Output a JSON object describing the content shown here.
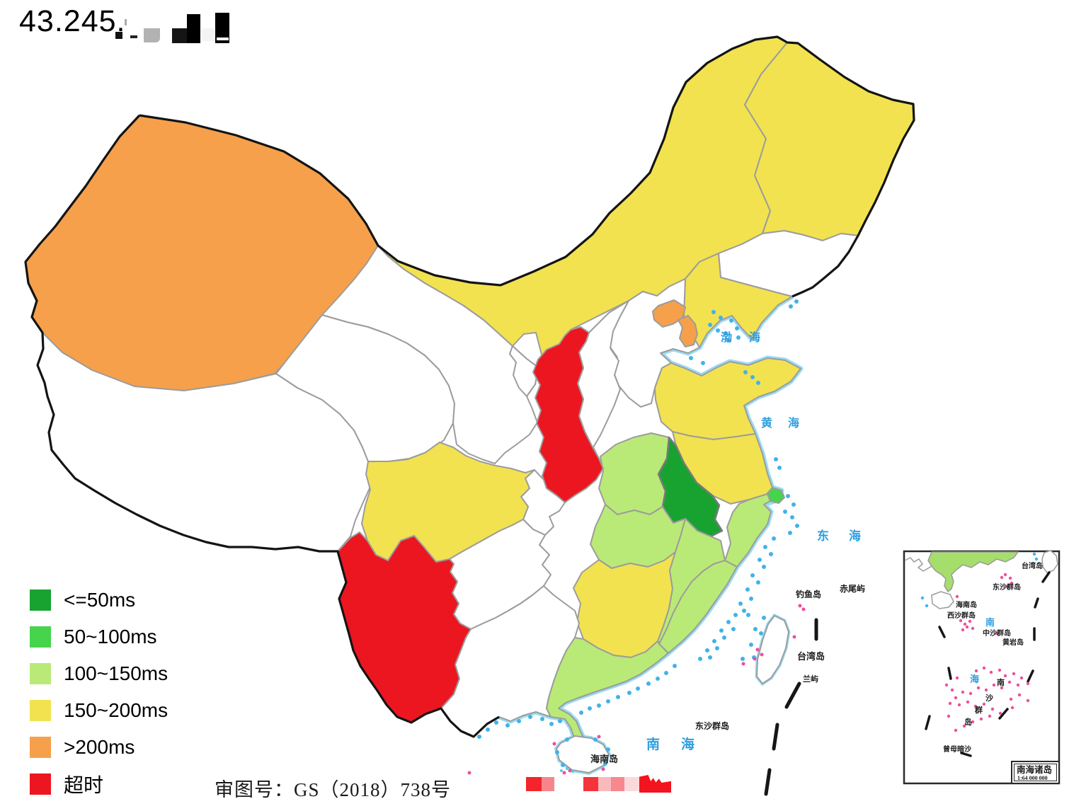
{
  "header": {
    "ip_prefix": "43.245."
  },
  "legend": {
    "items": [
      {
        "label": "<=50ms",
        "color": "#18A331",
        "status": "le50"
      },
      {
        "label": "50~100ms",
        "color": "#46D44D",
        "status": "ms50_100"
      },
      {
        "label": "100~150ms",
        "color": "#B9EA77",
        "status": "ms100_150"
      },
      {
        "label": "150~200ms",
        "color": "#F2E250",
        "status": "ms150_200"
      },
      {
        "label": ">200ms",
        "color": "#F6A04B",
        "status": "gt200"
      },
      {
        "label": "超时",
        "color": "#EC1620",
        "status": "timeout"
      }
    ]
  },
  "map": {
    "status_colors": {
      "le50": "#18A331",
      "ms50_100": "#46D44D",
      "ms100_150": "#B9EA77",
      "ms150_200": "#F2E250",
      "gt200": "#F6A04B",
      "timeout": "#EC1620",
      "nodata": "#FFFFFF"
    },
    "provinces": {
      "xinjiang": "gt200",
      "xizang": "nodata",
      "qinghai": "nodata",
      "gansu": "nodata",
      "ningxia": "nodata",
      "neimenggu": "ms150_200",
      "heilongjiang": "ms150_200",
      "jilin": "nodata",
      "liaoning": "ms150_200",
      "beijing": "gt200",
      "tianjin": "gt200",
      "hebei": "nodata",
      "shanxi": "nodata",
      "shandong": "ms150_200",
      "henan": "ms100_150",
      "shaanxi": "timeout",
      "jiangsu": "ms150_200",
      "anhui": "le50",
      "shanghai": "ms50_100",
      "zhejiang": "ms100_150",
      "hubei": "ms100_150",
      "chongqing": "nodata",
      "sichuan": "ms150_200",
      "guizhou": "nodata",
      "hunan": "ms150_200",
      "jiangxi": "ms100_150",
      "fujian": "ms100_150",
      "yunnan": "timeout",
      "guangxi": "nodata",
      "guangdong": "ms100_150",
      "hainan": "nodata",
      "taiwan": "nodata"
    },
    "sea_labels": {
      "bohai": "渤海",
      "huanghai": "黄海",
      "donghai": "东海",
      "nanhai": "南海"
    },
    "island_labels": {
      "diaoyudao": "钓鱼岛",
      "chiweiyu": "赤尾屿",
      "taiwandao": "台湾岛",
      "lanyu": "兰屿",
      "dongshaqundao": "东沙群岛",
      "hainandao": "海南岛"
    }
  },
  "inset": {
    "labels": {
      "taiwandao": "台湾岛",
      "dongshaqundao": "东沙群岛",
      "hainandao": "海南岛",
      "xishaqundao": "西沙群岛",
      "zhongshaqundao": "中沙群岛",
      "huangyandao": "黄岩岛",
      "sea_nan": "南",
      "sea_hai": "海",
      "nansha_nan": "南",
      "nansha_sha": "沙",
      "nansha_qun": "群",
      "nansha_dao": "岛",
      "zengmuansha": "曾母暗沙"
    },
    "box": {
      "title": "南海诸岛",
      "scale": "1:64 000 000"
    }
  },
  "footer": {
    "approval_number": "审图号：GS（2018）738号"
  }
}
